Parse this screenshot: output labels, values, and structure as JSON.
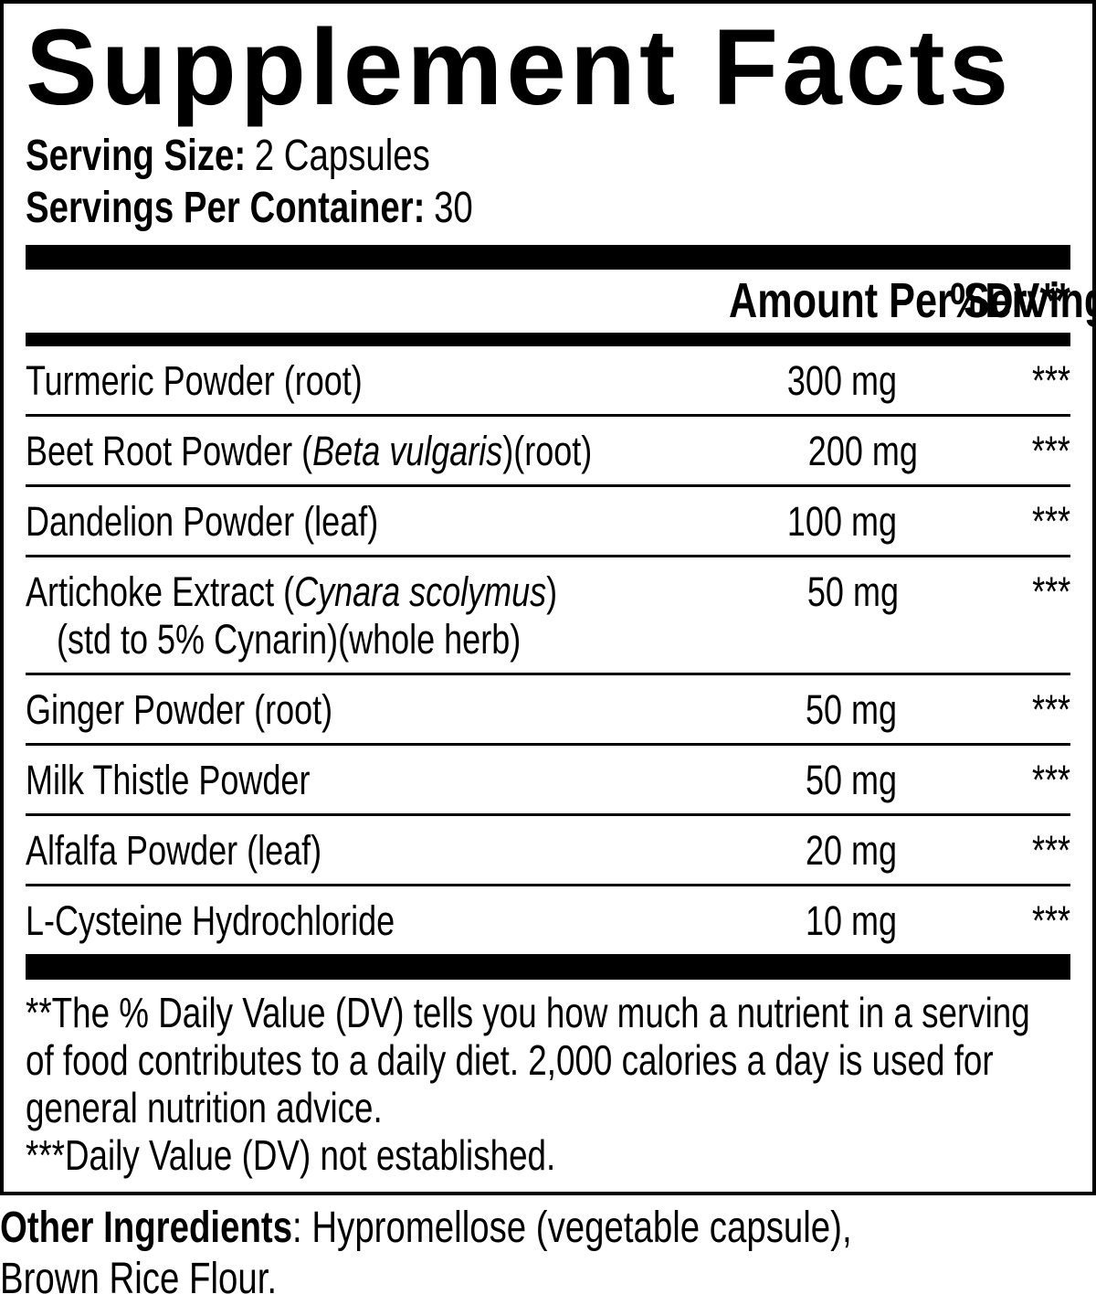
{
  "label": {
    "title": "Supplement Facts",
    "serving": {
      "size_label": "Serving Size:",
      "size_value": "2 Capsules",
      "per_container_label": "Servings Per Container:",
      "per_container_value": "30"
    },
    "table": {
      "amount_header": "Amount Per Serving",
      "dv_header": "%DV**",
      "rows": [
        {
          "prefix": "Turmeric Powder (root)",
          "italic": "",
          "suffix": "",
          "line2": "",
          "amount": "300 mg",
          "dv": "***"
        },
        {
          "prefix": "Beet Root Powder (",
          "italic": "Beta vulgaris",
          "suffix": ")(root)",
          "line2": "",
          "amount": "200 mg",
          "dv": "***"
        },
        {
          "prefix": "Dandelion Powder (leaf)",
          "italic": "",
          "suffix": "",
          "line2": "",
          "amount": "100 mg",
          "dv": "***"
        },
        {
          "prefix": "Artichoke Extract (",
          "italic": "Cynara scolymus",
          "suffix": ")",
          "line2": "(std to 5% Cynarin)(whole herb)",
          "amount": "50 mg",
          "dv": "***"
        },
        {
          "prefix": "Ginger Powder (root)",
          "italic": "",
          "suffix": "",
          "line2": "",
          "amount": "50 mg",
          "dv": "***"
        },
        {
          "prefix": "Milk Thistle Powder",
          "italic": "",
          "suffix": "",
          "line2": "",
          "amount": "50 mg",
          "dv": "***"
        },
        {
          "prefix": "Alfalfa Powder (leaf)",
          "italic": "",
          "suffix": "",
          "line2": "",
          "amount": "20 mg",
          "dv": "***"
        },
        {
          "prefix": "L-Cysteine Hydrochloride",
          "italic": "",
          "suffix": "",
          "line2": "",
          "amount": "10 mg",
          "dv": "***"
        }
      ]
    },
    "footnotes": {
      "line1": "**The % Daily Value (DV) tells you how much a nutrient in a serving",
      "line2": "of food contributes to a daily diet. 2,000 calories a day is used for",
      "line3": "general nutrition advice.",
      "line4": "***Daily Value (DV) not established."
    }
  },
  "other_ingredients": {
    "label": "Other Ingredients",
    "rest": ": Hypromellose (vegetable capsule),",
    "line2": "Brown Rice Flour."
  },
  "colors": {
    "text": "#000000",
    "background": "#ffffff"
  }
}
